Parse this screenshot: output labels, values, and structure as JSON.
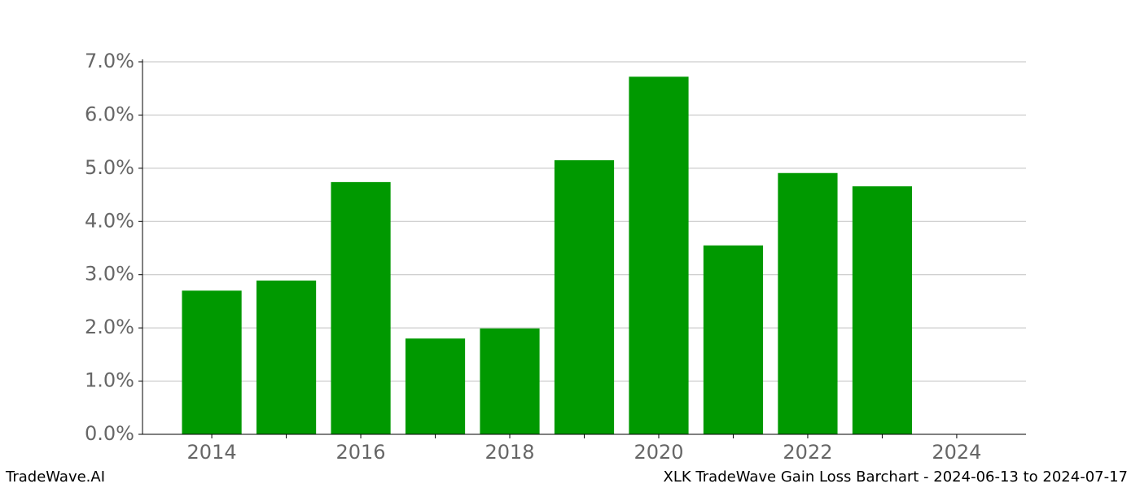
{
  "chart_data": {
    "type": "bar",
    "title": "XLK TradeWave Gain Loss Barchart - 2024-06-13 to 2024-07-17",
    "watermark": "TradeWave.AI",
    "x": [
      2014,
      2015,
      2016,
      2017,
      2018,
      2019,
      2020,
      2021,
      2022,
      2023
    ],
    "values": [
      2.7,
      2.89,
      4.74,
      1.8,
      1.99,
      5.15,
      6.72,
      3.55,
      4.91,
      4.66
    ],
    "color": "#009900",
    "xlim": [
      2013.07,
      2024.93
    ],
    "xticks": [
      2014,
      2016,
      2018,
      2020,
      2022,
      2024
    ],
    "x_minor_ticks": [
      2015,
      2017,
      2019,
      2021,
      2023
    ],
    "ylim": [
      0,
      7
    ],
    "yticks": [
      {
        "value": 0,
        "label": "0.0%"
      },
      {
        "value": 1,
        "label": "1.0%"
      },
      {
        "value": 2,
        "label": "2.0%"
      },
      {
        "value": 3,
        "label": "3.0%"
      },
      {
        "value": 4,
        "label": "4.0%"
      },
      {
        "value": 5,
        "label": "5.0%"
      },
      {
        "value": 6,
        "label": "6.0%"
      },
      {
        "value": 7,
        "label": "7.0%"
      }
    ],
    "grid": true
  }
}
